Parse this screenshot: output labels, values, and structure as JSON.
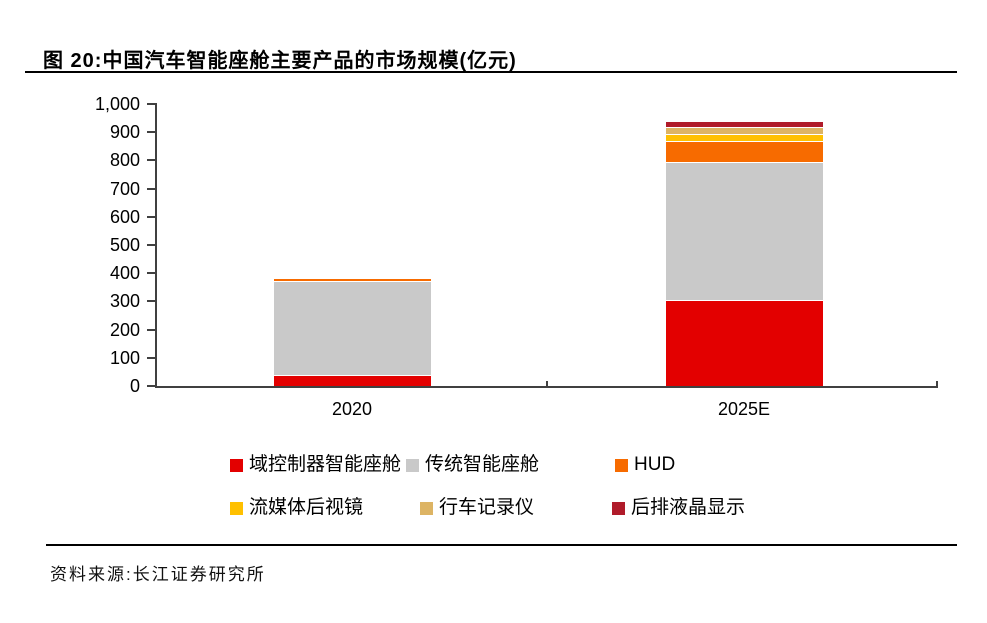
{
  "figure": {
    "title": "图 20:中国汽车智能座舱主要产品的市场规模(亿元)",
    "source": "资料来源:长江证券研究所"
  },
  "chart_data": {
    "type": "bar",
    "stacked": true,
    "title": "中国汽车智能座舱主要产品的市场规模(亿元)",
    "unit": "亿元",
    "categories": [
      "2020",
      "2025E"
    ],
    "series": [
      {
        "name": "域控制器智能座舱",
        "color": "#e30000",
        "values": [
          35,
          300
        ]
      },
      {
        "name": "传统智能座舱",
        "color": "#c9c9c9",
        "values": [
          335,
          490
        ]
      },
      {
        "name": "HUD",
        "color": "#f76b00",
        "values": [
          10,
          75
        ]
      },
      {
        "name": "流媒体后视镜",
        "color": "#ffc000",
        "values": [
          3,
          25
        ]
      },
      {
        "name": "行车记录仪",
        "color": "#ddb464",
        "values": [
          3,
          25
        ]
      },
      {
        "name": "后排液晶显示",
        "color": "#b01b2a",
        "values": [
          2,
          20
        ]
      }
    ],
    "totals": [
      388,
      935
    ],
    "ylim": [
      0,
      1000
    ],
    "ytick_step": 100,
    "ytick_labels": [
      "0",
      "100",
      "200",
      "300",
      "400",
      "500",
      "600",
      "700",
      "800",
      "900",
      "1,000"
    ],
    "xtick_labels": [
      "2020",
      "2025E"
    ],
    "grid": false,
    "legend_position": "bottom",
    "axis_color": "#404040"
  }
}
